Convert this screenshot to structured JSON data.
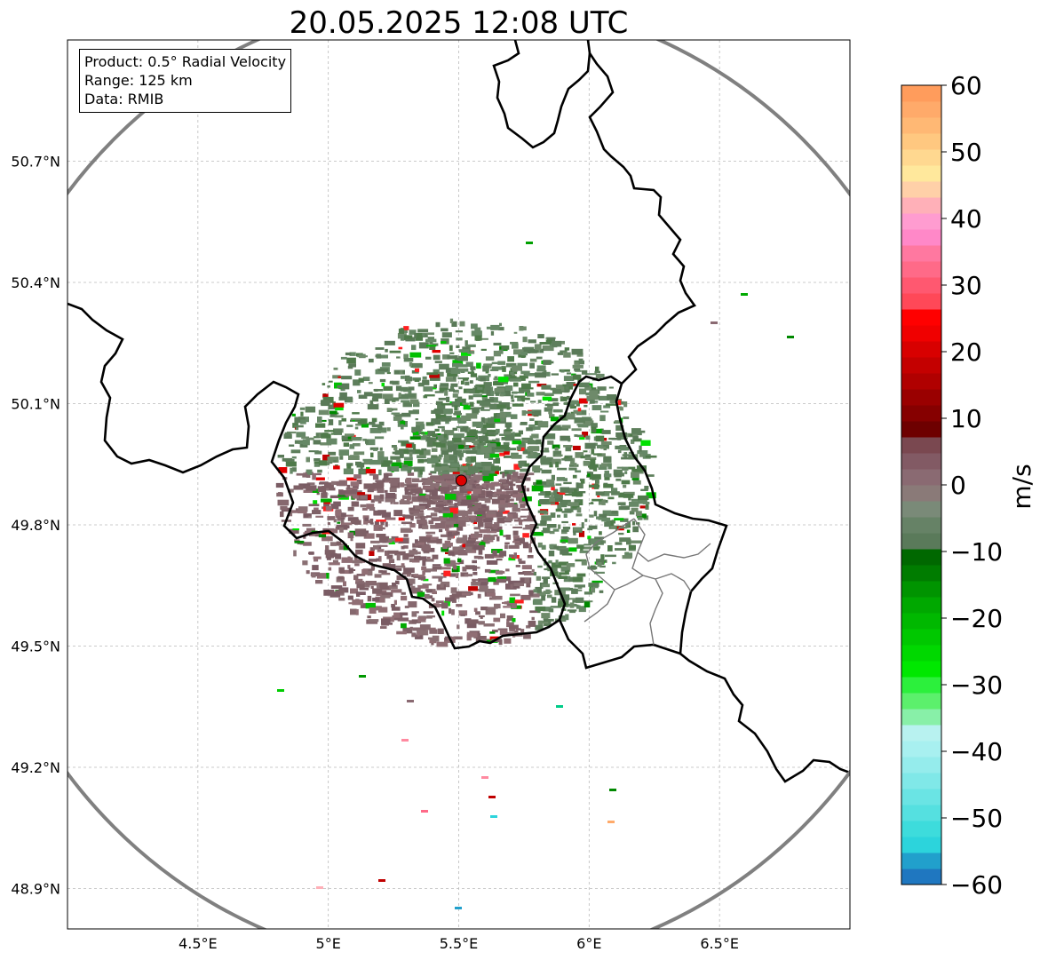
{
  "title": "20.05.2025 12:08 UTC",
  "info_box": {
    "product": "Product: 0.5° Radial Velocity",
    "range": "Range: 125 km",
    "data": "Data: RMIB"
  },
  "map": {
    "lon_range": [
      4.0,
      7.0
    ],
    "lat_range": [
      48.8,
      51.0
    ],
    "radar_site": {
      "lon": 5.51,
      "lat": 49.91,
      "color": "#dd0000"
    },
    "range_ring_km": 125,
    "lon_ticks": [
      {
        "value": 4.5,
        "label": "4.5°E"
      },
      {
        "value": 5.0,
        "label": "5°E"
      },
      {
        "value": 5.5,
        "label": "5.5°E"
      },
      {
        "value": 6.0,
        "label": "6°E"
      },
      {
        "value": 6.5,
        "label": "6.5°E"
      }
    ],
    "lat_ticks": [
      {
        "value": 50.7,
        "label": "50.7°N"
      },
      {
        "value": 50.4,
        "label": "50.4°N"
      },
      {
        "value": 50.1,
        "label": "50.1°N"
      },
      {
        "value": 49.8,
        "label": "49.8°N"
      },
      {
        "value": 49.5,
        "label": "49.5°N"
      },
      {
        "value": 49.2,
        "label": "49.2°N"
      },
      {
        "value": 48.9,
        "label": "48.9°N"
      }
    ],
    "gridlines": true
  },
  "colorbar": {
    "label": "m/s",
    "range": [
      -60,
      60
    ],
    "ticks": [
      {
        "value": 60,
        "label": "60"
      },
      {
        "value": 50,
        "label": "50"
      },
      {
        "value": 40,
        "label": "40"
      },
      {
        "value": 30,
        "label": "30"
      },
      {
        "value": 20,
        "label": "20"
      },
      {
        "value": 10,
        "label": "10"
      },
      {
        "value": 0,
        "label": "0"
      },
      {
        "value": -10,
        "label": "−10"
      },
      {
        "value": -20,
        "label": "−20"
      },
      {
        "value": -30,
        "label": "−30"
      },
      {
        "value": -40,
        "label": "−40"
      },
      {
        "value": -50,
        "label": "−50"
      },
      {
        "value": -60,
        "label": "−60"
      }
    ],
    "colors_low_to_high": [
      "#1f77c0",
      "#21a0cc",
      "#2cd4dc",
      "#3ddcdc",
      "#55e0e0",
      "#6ae4e4",
      "#80e8e8",
      "#95ecec",
      "#a8f0f0",
      "#b8f2f0",
      "#88f0a8",
      "#5cf06c",
      "#2cf03c",
      "#00e800",
      "#00d800",
      "#00c800",
      "#00b800",
      "#00a800",
      "#009400",
      "#007c00",
      "#006800",
      "#5a7a5a",
      "#668266",
      "#7a8a78",
      "#8a7a78",
      "#8a6a72",
      "#825a64",
      "#7a4850",
      "#6e0000",
      "#860000",
      "#9a0000",
      "#b00000",
      "#c40000",
      "#d80000",
      "#f00000",
      "#ff0000",
      "#ff4858",
      "#ff5870",
      "#ff6a88",
      "#ff78a0",
      "#ff88c8",
      "#ff9cd0",
      "#ffb0b8",
      "#ffd0a8",
      "#ffe89c",
      "#ffd890",
      "#ffc880",
      "#ffb874",
      "#ffaa6a",
      "#ff9c5c"
    ]
  }
}
